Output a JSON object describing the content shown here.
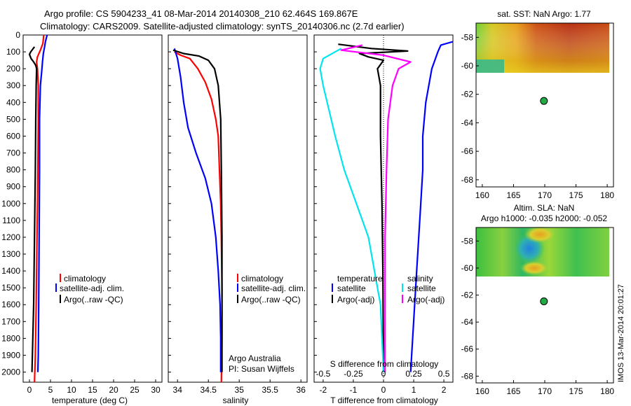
{
  "header": {
    "line1": "Argo profile: CS 5904233_41 08-Mar-2014 20140308_210 62.464S 169.867E",
    "line2": "Climatology: CARS2009. Satellite-adjusted climatology: synTS_20140306.nc (2.7d earlier)"
  },
  "colors": {
    "climatology": "#ff0000",
    "satellite": "#0000ff",
    "argo": "#000000",
    "salinity_argo": "#ff00ff",
    "salinity_sat": "#00e5ee",
    "station_marker": "#22aa44"
  },
  "chart_data": [
    {
      "type": "line",
      "id": "temperature",
      "xlabel": "temperature (deg C)",
      "ylabel": "",
      "xlim": [
        -1.5,
        31.5
      ],
      "ylim": [
        2060,
        0
      ],
      "x_ticks": [
        0,
        5,
        10,
        15,
        20,
        25,
        30
      ],
      "y_ticks": [
        0,
        100,
        200,
        300,
        400,
        500,
        600,
        700,
        800,
        900,
        1000,
        1100,
        1200,
        1300,
        1400,
        1500,
        1600,
        1700,
        1800,
        1900,
        2000
      ],
      "legend": {
        "placement": "bottom-right",
        "entries": [
          "climatology",
          "satellite-adj. clim.",
          "Argo(..raw -QC)"
        ]
      },
      "series": [
        {
          "name": "climatology",
          "color_key": "climatology",
          "points": [
            [
              3.4,
              0
            ],
            [
              3.2,
              50
            ],
            [
              2.6,
              90
            ],
            [
              1.9,
              130
            ],
            [
              1.7,
              160
            ],
            [
              1.9,
              200
            ],
            [
              2.1,
              300
            ],
            [
              2.1,
              500
            ],
            [
              2.0,
              800
            ],
            [
              1.8,
              1200
            ],
            [
              1.6,
              1600
            ],
            [
              1.4,
              1900
            ],
            [
              1.2,
              2060
            ]
          ]
        },
        {
          "name": "satellite-adj. clim.",
          "color_key": "satellite",
          "points": [
            [
              4.2,
              0
            ],
            [
              3.8,
              40
            ],
            [
              3.6,
              70
            ],
            [
              3.3,
              110
            ],
            [
              3.1,
              160
            ],
            [
              2.9,
              220
            ],
            [
              2.6,
              300
            ],
            [
              2.4,
              500
            ],
            [
              2.4,
              800
            ],
            [
              2.3,
              1200
            ],
            [
              2.2,
              1600
            ],
            [
              2.1,
              1900
            ],
            [
              2.0,
              2000
            ]
          ]
        },
        {
          "name": "Argo(..raw -QC)",
          "color_key": "argo",
          "points": [
            [
              1.2,
              70
            ],
            [
              0.3,
              100
            ],
            [
              0.0,
              115
            ],
            [
              0.4,
              140
            ],
            [
              1.0,
              160
            ],
            [
              1.5,
              180
            ],
            [
              1.7,
              200
            ],
            [
              1.6,
              300
            ],
            [
              1.5,
              500
            ],
            [
              1.4,
              800
            ],
            [
              1.2,
              1200
            ],
            [
              1.0,
              1600
            ],
            [
              0.7,
              1900
            ],
            [
              0.6,
              2000
            ]
          ]
        }
      ]
    },
    {
      "type": "line",
      "id": "salinity",
      "xlabel": "salinity",
      "ylabel": "",
      "xlim": [
        33.85,
        36.1
      ],
      "ylim": [
        2060,
        0
      ],
      "x_ticks": [
        34,
        34.5,
        35,
        35.5,
        36
      ],
      "legend": {
        "placement": "bottom-right",
        "entries": [
          "climatology",
          "satellite-adj. clim.",
          "Argo(..raw -QC)"
        ]
      },
      "annotation": [
        "Argo Australia",
        "PI: Susan Wijffels"
      ],
      "series": [
        {
          "name": "climatology",
          "color_key": "climatology",
          "points": [
            [
              33.95,
              100
            ],
            [
              34.05,
              120
            ],
            [
              34.2,
              140
            ],
            [
              34.33,
              200
            ],
            [
              34.45,
              280
            ],
            [
              34.55,
              380
            ],
            [
              34.62,
              500
            ],
            [
              34.66,
              600
            ],
            [
              34.68,
              800
            ],
            [
              34.7,
              1000
            ],
            [
              34.71,
              1200
            ],
            [
              34.72,
              1500
            ],
            [
              34.72,
              1800
            ],
            [
              34.71,
              2060
            ]
          ]
        },
        {
          "name": "satellite-adj. clim.",
          "color_key": "satellite",
          "points": [
            [
              33.95,
              80
            ],
            [
              34.0,
              140
            ],
            [
              34.05,
              250
            ],
            [
              34.1,
              400
            ],
            [
              34.17,
              550
            ],
            [
              34.3,
              700
            ],
            [
              34.45,
              850
            ],
            [
              34.55,
              1000
            ],
            [
              34.62,
              1200
            ],
            [
              34.66,
              1400
            ],
            [
              34.69,
              1600
            ],
            [
              34.7,
              1800
            ],
            [
              34.7,
              2000
            ]
          ]
        },
        {
          "name": "Argo(..raw -QC)",
          "color_key": "argo",
          "points": [
            [
              33.93,
              90
            ],
            [
              34.1,
              110
            ],
            [
              34.35,
              125
            ],
            [
              34.5,
              150
            ],
            [
              34.6,
              200
            ],
            [
              34.66,
              300
            ],
            [
              34.7,
              500
            ],
            [
              34.71,
              800
            ],
            [
              34.72,
              1200
            ],
            [
              34.72,
              1600
            ],
            [
              34.72,
              2000
            ]
          ]
        }
      ]
    },
    {
      "type": "line",
      "id": "difference",
      "xlabel": "T difference from climatology",
      "x2label": "S difference from climatology",
      "xlim": [
        -2.3,
        2.3
      ],
      "ylim": [
        2060,
        0
      ],
      "x_ticks": [
        -2,
        -1,
        0,
        1,
        2
      ],
      "x2_ticks": [
        "-0.5",
        "-0.25",
        "0",
        "0.25",
        "0.5"
      ],
      "x2_tick_positions_T": [
        -2,
        -1,
        0,
        1,
        2
      ],
      "legend_temperature": {
        "heading": "temperature",
        "entries": [
          "satellite",
          "Argo(-adj)"
        ]
      },
      "legend_salinity": {
        "heading": "salinity",
        "entries": [
          "satellite",
          "Argo(-adj)"
        ]
      },
      "series": [
        {
          "name": "T satellite",
          "color_key": "satellite",
          "points": [
            [
              2.3,
              40
            ],
            [
              1.9,
              60
            ],
            [
              1.8,
              100
            ],
            [
              1.6,
              200
            ],
            [
              1.5,
              300
            ],
            [
              1.4,
              400
            ],
            [
              1.3,
              600
            ],
            [
              1.3,
              800
            ],
            [
              1.2,
              1100
            ],
            [
              1.1,
              1400
            ],
            [
              1.0,
              1700
            ],
            [
              0.9,
              2000
            ]
          ]
        },
        {
          "name": "T Argo(-adj)",
          "color_key": "argo",
          "points": [
            [
              -1.5,
              55
            ],
            [
              -0.4,
              80
            ],
            [
              0.8,
              95
            ],
            [
              -0.8,
              110
            ],
            [
              -0.5,
              130
            ],
            [
              0.0,
              150
            ],
            [
              -0.2,
              200
            ],
            [
              -0.1,
              300
            ],
            [
              -0.1,
              600
            ],
            [
              -0.05,
              1000
            ],
            [
              -0.02,
              1400
            ],
            [
              0.0,
              2000
            ]
          ]
        },
        {
          "name": "S satellite",
          "color_key": "salinity_sat",
          "points": [
            [
              -1.4,
              80
            ],
            [
              -2.0,
              140
            ],
            [
              -2.1,
              200
            ],
            [
              -2.0,
              300
            ],
            [
              -1.8,
              450
            ],
            [
              -1.6,
              600
            ],
            [
              -1.3,
              800
            ],
            [
              -0.9,
              1000
            ],
            [
              -0.5,
              1200
            ],
            [
              -0.3,
              1400
            ],
            [
              -0.1,
              1600
            ],
            [
              0.0,
              2000
            ]
          ]
        },
        {
          "name": "S Argo(-adj)",
          "color_key": "salinity_argo",
          "points": [
            [
              -0.7,
              60
            ],
            [
              -1.4,
              90
            ],
            [
              0.0,
              120
            ],
            [
              0.9,
              160
            ],
            [
              0.5,
              200
            ],
            [
              0.3,
              300
            ],
            [
              0.15,
              500
            ],
            [
              0.1,
              800
            ],
            [
              0.05,
              1200
            ],
            [
              0.05,
              1600
            ],
            [
              0.05,
              2000
            ]
          ]
        }
      ]
    },
    {
      "type": "heatmap",
      "id": "sst_map",
      "title": "sat. SST: NaN Argo: 1.77",
      "xlim": [
        159,
        181
      ],
      "ylim": [
        -68.5,
        -57
      ],
      "x_ticks": [
        160,
        165,
        170,
        175,
        180
      ],
      "y_ticks": [
        -58,
        -60,
        -62,
        -64,
        -66,
        -68
      ],
      "field_lat_range": [
        -60.3,
        -57
      ],
      "station": {
        "lon": 169.867,
        "lat": -62.464
      }
    },
    {
      "type": "heatmap",
      "id": "sla_map",
      "title": "Altim. SLA: NaN",
      "subtitle": "Argo h1000: -0.035 h2000: -0.052",
      "xlim": [
        159,
        181
      ],
      "ylim": [
        -68.5,
        -57
      ],
      "x_ticks": [
        160,
        165,
        170,
        175,
        180
      ],
      "y_ticks": [
        -58,
        -60,
        -62,
        -64,
        -66,
        -68
      ],
      "field_lat_range": [
        -60,
        -57
      ],
      "station": {
        "lon": 169.867,
        "lat": -62.464
      }
    }
  ],
  "footer_stamp": "IMOS 13-Mar-2014 20:01:27"
}
